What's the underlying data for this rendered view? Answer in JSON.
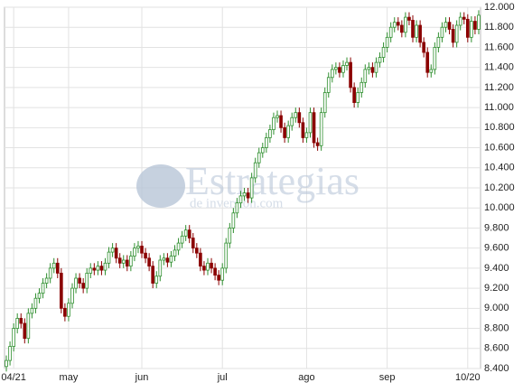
{
  "chart_data": {
    "type": "candlestick",
    "watermark": [
      "Estrategias",
      "de inversion.com"
    ],
    "categories": [
      null,
      null,
      "04/21",
      null,
      null,
      null,
      null,
      null,
      null,
      null,
      null,
      null,
      null,
      null,
      null,
      null,
      null,
      "may",
      null,
      null,
      null,
      null,
      null,
      null,
      null,
      null,
      null,
      null,
      null,
      null,
      null,
      null,
      null,
      null,
      null,
      null,
      null,
      "jun",
      null,
      null,
      null,
      null,
      null,
      null,
      null,
      null,
      null,
      null,
      null,
      null,
      null,
      null,
      null,
      null,
      null,
      null,
      null,
      null,
      null,
      "jul",
      null,
      null,
      null,
      null,
      null,
      null,
      null,
      null,
      null,
      null,
      null,
      null,
      null,
      null,
      null,
      null,
      null,
      null,
      null,
      null,
      null,
      null,
      "ago",
      null,
      null,
      null,
      null,
      null,
      null,
      null,
      null,
      null,
      null,
      null,
      null,
      null,
      null,
      null,
      null,
      null,
      null,
      null,
      null,
      null,
      "sep",
      null,
      null,
      null,
      null,
      null,
      null,
      null,
      null,
      null,
      null,
      null,
      null,
      null,
      null,
      null,
      null,
      null,
      null,
      null,
      null,
      null,
      "10/20",
      null,
      null,
      null
    ],
    "open": [
      8420,
      8480,
      8620,
      8800,
      8900,
      8850,
      8700,
      8950,
      9000,
      9100,
      9150,
      9250,
      9300,
      9400,
      9450,
      9350,
      9000,
      8920,
      9050,
      9200,
      9300,
      9250,
      9200,
      9350,
      9400,
      9380,
      9420,
      9380,
      9450,
      9560,
      9600,
      9500,
      9450,
      9480,
      9420,
      9520,
      9600,
      9620,
      9550,
      9500,
      9420,
      9250,
      9320,
      9480,
      9500,
      9460,
      9520,
      9580,
      9650,
      9720,
      9780,
      9700,
      9600,
      9550,
      9420,
      9380,
      9450,
      9400,
      9330,
      9280,
      9400,
      9650,
      9800,
      9950,
      10050,
      10120,
      10150,
      10100,
      10300,
      10450,
      10550,
      10600,
      10700,
      10780,
      10900,
      10920,
      10800,
      10700,
      10820,
      10900,
      10950,
      10850,
      10700,
      10750,
      10950,
      10650,
      10620,
      10950,
      11150,
      11300,
      11380,
      11400,
      11350,
      11420,
      11450,
      11200,
      11050,
      11150,
      11250,
      11380,
      11400,
      11350,
      11450,
      11500,
      11600,
      11700,
      11800,
      11850,
      11820,
      11750,
      11900,
      11870,
      11700,
      11820,
      11650,
      11550,
      11350,
      11380,
      11600,
      11700,
      11800,
      11850,
      11780,
      11650,
      11820,
      11900,
      11880,
      11700,
      11860,
      11780
    ],
    "high": [
      8530,
      8670,
      8850,
      8950,
      8950,
      8900,
      9000,
      9050,
      9150,
      9200,
      9300,
      9350,
      9450,
      9500,
      9500,
      9400,
      9050,
      9100,
      9250,
      9350,
      9350,
      9300,
      9400,
      9450,
      9450,
      9470,
      9470,
      9500,
      9610,
      9650,
      9650,
      9550,
      9530,
      9530,
      9570,
      9650,
      9670,
      9670,
      9600,
      9550,
      9470,
      9370,
      9530,
      9550,
      9550,
      9570,
      9630,
      9700,
      9770,
      9830,
      9830,
      9750,
      9650,
      9600,
      9470,
      9500,
      9500,
      9450,
      9380,
      9450,
      9700,
      9850,
      10000,
      10100,
      10170,
      10200,
      10200,
      10350,
      10500,
      10600,
      10650,
      10750,
      10830,
      10950,
      10970,
      10970,
      10850,
      10870,
      10950,
      11000,
      11000,
      10900,
      10800,
      11000,
      11000,
      10700,
      11000,
      11200,
      11350,
      11430,
      11450,
      11450,
      11470,
      11500,
      11500,
      11250,
      11200,
      11300,
      11430,
      11450,
      11450,
      11500,
      11550,
      11650,
      11750,
      11850,
      11900,
      11900,
      11870,
      11950,
      11950,
      11920,
      11870,
      11870,
      11700,
      11600,
      11430,
      11650,
      11750,
      11850,
      11900,
      11900,
      11830,
      11870,
      11950,
      11950,
      11930,
      11910,
      11910,
      11970
    ],
    "low": [
      8370,
      8430,
      8570,
      8750,
      8800,
      8650,
      8650,
      8900,
      8950,
      9050,
      9100,
      9200,
      9250,
      9350,
      9300,
      8950,
      8870,
      8870,
      9000,
      9150,
      9200,
      9150,
      9150,
      9300,
      9330,
      9330,
      9330,
      9330,
      9400,
      9510,
      9450,
      9400,
      9400,
      9370,
      9370,
      9470,
      9550,
      9500,
      9450,
      9370,
      9200,
      9200,
      9270,
      9430,
      9410,
      9410,
      9470,
      9530,
      9600,
      9670,
      9650,
      9550,
      9500,
      9370,
      9330,
      9330,
      9350,
      9280,
      9230,
      9230,
      9350,
      9600,
      9750,
      9900,
      10000,
      10070,
      10050,
      10050,
      10250,
      10400,
      10500,
      10550,
      10650,
      10730,
      10850,
      10750,
      10650,
      10650,
      10770,
      10850,
      10800,
      10650,
      10650,
      10700,
      10600,
      10570,
      10570,
      10900,
      11100,
      11250,
      11330,
      11300,
      11300,
      11370,
      11150,
      11000,
      11000,
      11100,
      11200,
      11330,
      11300,
      11300,
      11400,
      11450,
      11550,
      11650,
      11750,
      11770,
      11700,
      11700,
      11820,
      11650,
      11650,
      11600,
      11500,
      11300,
      11300,
      11330,
      11550,
      11650,
      11750,
      11730,
      11600,
      11600,
      11770,
      11830,
      11650,
      11650,
      11730,
      11730
    ],
    "close": [
      8480,
      8620,
      8800,
      8900,
      8850,
      8700,
      8950,
      9000,
      9100,
      9150,
      9250,
      9300,
      9400,
      9450,
      9350,
      9000,
      8920,
      9050,
      9200,
      9300,
      9250,
      9200,
      9350,
      9400,
      9380,
      9420,
      9380,
      9450,
      9560,
      9600,
      9500,
      9450,
      9480,
      9420,
      9520,
      9600,
      9620,
      9550,
      9500,
      9420,
      9250,
      9320,
      9480,
      9500,
      9460,
      9520,
      9580,
      9650,
      9720,
      9780,
      9700,
      9600,
      9550,
      9420,
      9380,
      9450,
      9400,
      9330,
      9280,
      9400,
      9650,
      9800,
      9950,
      10050,
      10120,
      10150,
      10100,
      10300,
      10450,
      10550,
      10600,
      10700,
      10780,
      10900,
      10920,
      10800,
      10700,
      10820,
      10900,
      10950,
      10850,
      10700,
      10750,
      10950,
      10650,
      10620,
      10950,
      11150,
      11300,
      11380,
      11400,
      11350,
      11420,
      11450,
      11200,
      11050,
      11150,
      11250,
      11380,
      11400,
      11350,
      11450,
      11500,
      11600,
      11700,
      11800,
      11850,
      11820,
      11750,
      11900,
      11870,
      11700,
      11820,
      11650,
      11550,
      11350,
      11380,
      11600,
      11700,
      11800,
      11850,
      11780,
      11650,
      11820,
      11900,
      11880,
      11700,
      11860,
      11780,
      11920
    ],
    "up_color": "#2f8f2f",
    "down_color": "#8b0000",
    "ylim": [
      8400,
      12000
    ],
    "yticks": [
      {
        "value": 8400,
        "label": "8.400"
      },
      {
        "value": 8600,
        "label": "8.600"
      },
      {
        "value": 8800,
        "label": "8.800"
      },
      {
        "value": 9000,
        "label": "9.000"
      },
      {
        "value": 9200,
        "label": "9.200"
      },
      {
        "value": 9400,
        "label": "9.400"
      },
      {
        "value": 9600,
        "label": "9.600"
      },
      {
        "value": 9800,
        "label": "9.800"
      },
      {
        "value": 10000,
        "label": "10.000"
      },
      {
        "value": 10200,
        "label": "10.200"
      },
      {
        "value": 10400,
        "label": "10.400"
      },
      {
        "value": 10600,
        "label": "10.600"
      },
      {
        "value": 10800,
        "label": "10.800"
      },
      {
        "value": 11000,
        "label": "11.000"
      },
      {
        "value": 11200,
        "label": "11.200"
      },
      {
        "value": 11400,
        "label": "11.400"
      },
      {
        "value": 11600,
        "label": "11.600"
      },
      {
        "value": 11800,
        "label": "11.800"
      },
      {
        "value": 12000,
        "label": "12.000"
      }
    ],
    "grid": true
  }
}
